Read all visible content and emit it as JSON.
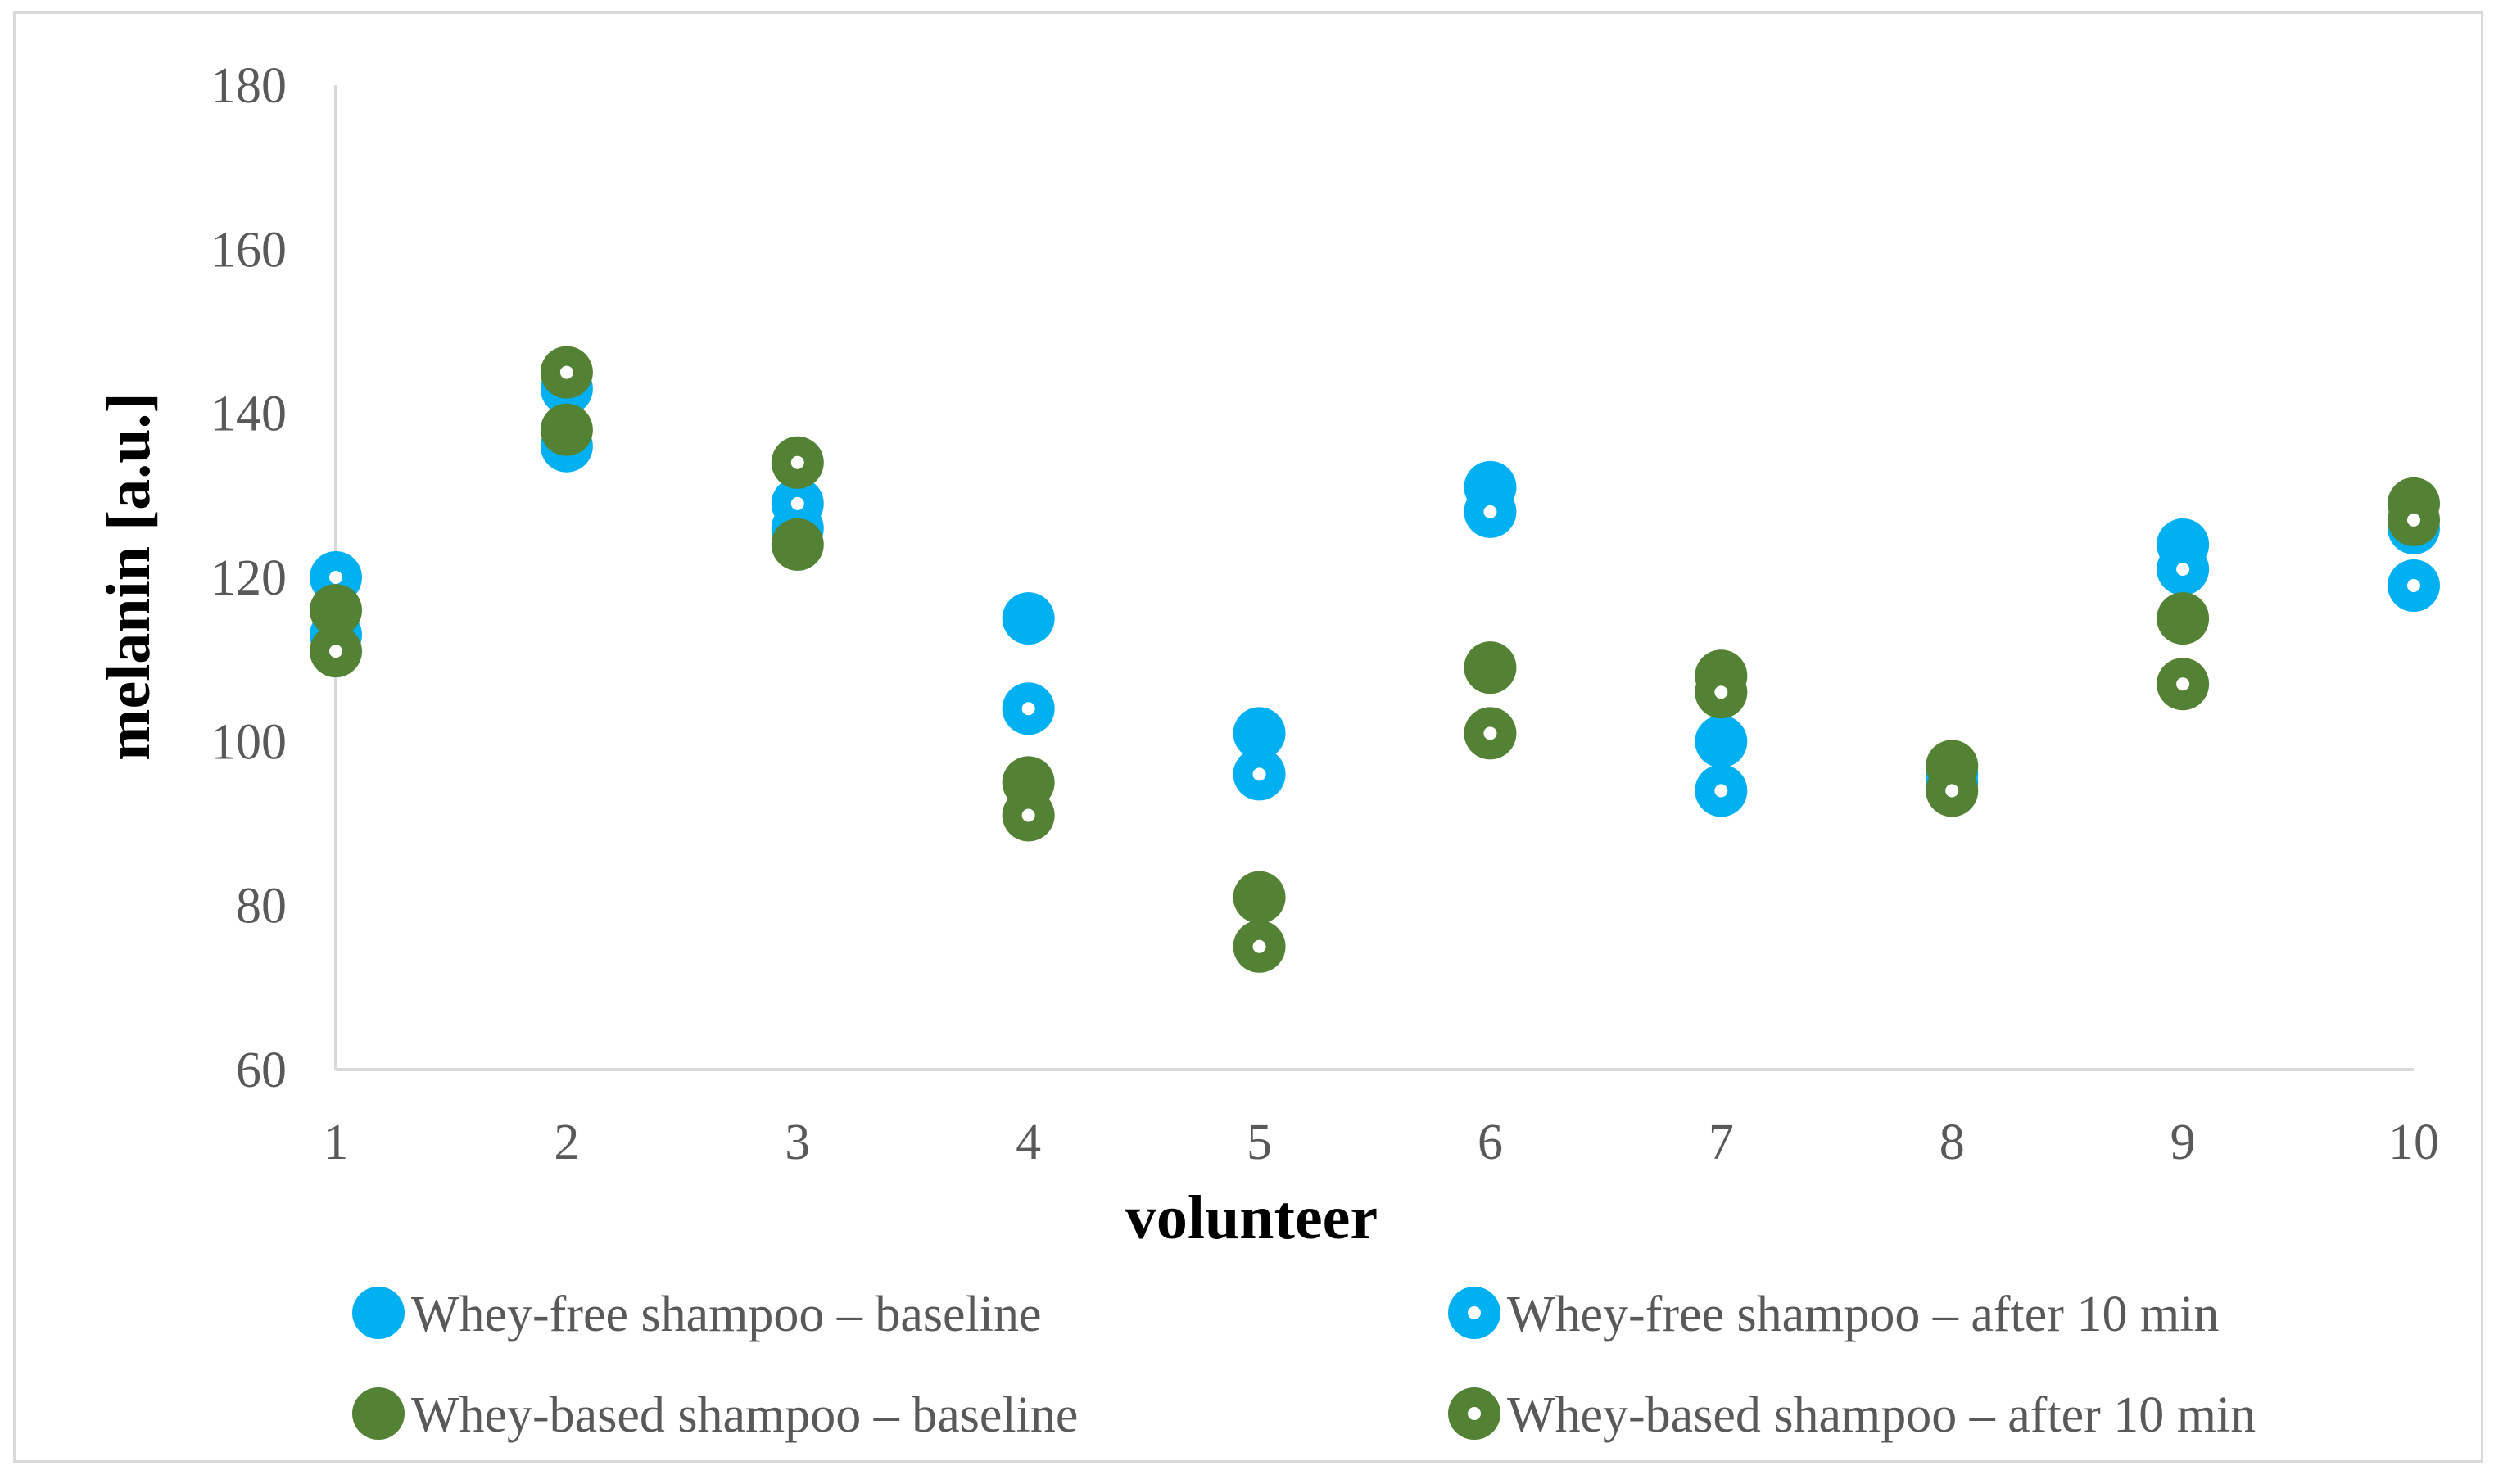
{
  "chart_data": {
    "type": "scatter",
    "title": "",
    "xlabel": "volunteer",
    "ylabel": "melanin [a.u.]",
    "x_ticks": [
      "1",
      "2",
      "3",
      "4",
      "5",
      "6",
      "7",
      "8",
      "9",
      "10"
    ],
    "y_ticks": [
      "60",
      "80",
      "100",
      "120",
      "140",
      "160",
      "180"
    ],
    "xlim": [
      1,
      10
    ],
    "ylim": [
      60,
      180
    ],
    "grid": false,
    "legend_position": "bottom",
    "x": [
      1,
      2,
      3,
      4,
      5,
      6,
      7,
      8,
      9,
      10
    ],
    "series": [
      {
        "name": "Whey-free shampoo – baseline",
        "color": "#00b0f0",
        "marker": "filled-circle",
        "values": [
          113,
          136,
          126,
          115,
          101,
          131,
          100,
          96,
          124,
          126
        ]
      },
      {
        "name": "Whey-free shampoo – after 10 min",
        "color": "#00b0f0",
        "marker": "ring-circle",
        "values": [
          120,
          143,
          129,
          104,
          96,
          128,
          94,
          95,
          121,
          119
        ]
      },
      {
        "name": "Whey-based shampoo – baseline",
        "color": "#548235",
        "marker": "filled-circle",
        "values": [
          116,
          138,
          124,
          95,
          81,
          109,
          108,
          97,
          115,
          129
        ]
      },
      {
        "name": "Whey-based shampoo – after 10 min",
        "color": "#548235",
        "marker": "ring-circle",
        "values": [
          111,
          145,
          134,
          91,
          75,
          101,
          106,
          94,
          107,
          127
        ]
      }
    ]
  }
}
